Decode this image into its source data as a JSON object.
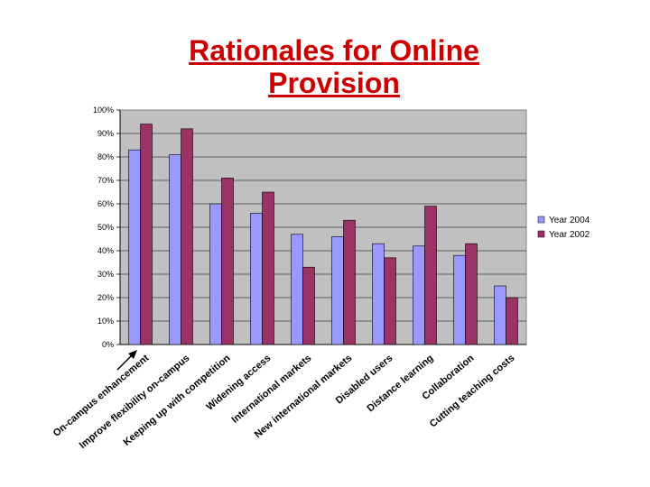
{
  "slide": {
    "title_line1": "Rationales for Online",
    "title_line2": "Provision"
  },
  "chart_data": {
    "type": "bar",
    "title": "Rationales for Online Provision",
    "categories": [
      "On-campus enhancement",
      "Improve flexibility on-campus",
      "Keeping up with competition",
      "Widening access",
      "International markets",
      "New international markets",
      "Disabled users",
      "Distance learning",
      "Collaboration",
      "Cutting teaching costs"
    ],
    "series": [
      {
        "name": "Year 2004",
        "values": [
          83,
          81,
          60,
          56,
          47,
          46,
          43,
          42,
          38,
          25
        ],
        "color": "#9999ff"
      },
      {
        "name": "Year 2002",
        "values": [
          94,
          92,
          71,
          65,
          33,
          53,
          37,
          59,
          43,
          20
        ],
        "color": "#993366"
      }
    ],
    "ylim": [
      0,
      100
    ],
    "yticks": [
      "0%",
      "10%",
      "20%",
      "30%",
      "40%",
      "50%",
      "60%",
      "70%",
      "80%",
      "90%",
      "100%"
    ],
    "grid": true,
    "plot_background": "#c0c0c0",
    "legend": "right"
  }
}
